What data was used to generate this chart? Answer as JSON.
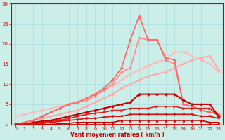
{
  "xlabel": "Vent moyen/en rafales ( km/h )",
  "xlim": [
    -0.5,
    23.5
  ],
  "ylim": [
    0,
    30
  ],
  "yticks": [
    0,
    5,
    10,
    15,
    20,
    25,
    30
  ],
  "xticks": [
    0,
    1,
    2,
    3,
    4,
    5,
    6,
    7,
    8,
    9,
    10,
    11,
    12,
    13,
    14,
    15,
    16,
    17,
    18,
    19,
    20,
    21,
    22,
    23
  ],
  "bg_color": "#cceee8",
  "grid_color": "#aadddd",
  "lines": [
    {
      "x": [
        0,
        1,
        2,
        3,
        4,
        5,
        6,
        7,
        8,
        9,
        10,
        11,
        12,
        13,
        14,
        15,
        16,
        17,
        18,
        19,
        20,
        21,
        22,
        23
      ],
      "y": [
        0,
        0,
        0,
        0,
        0,
        0,
        0,
        0,
        0,
        0,
        0,
        0,
        0,
        0,
        0,
        0,
        0,
        0,
        0,
        0,
        0,
        0,
        0,
        0
      ],
      "color": "#cc0000",
      "lw": 1.2,
      "marker": "s",
      "ms": 2.0,
      "zorder": 5
    },
    {
      "x": [
        0,
        1,
        2,
        3,
        4,
        5,
        6,
        7,
        8,
        9,
        10,
        11,
        12,
        13,
        14,
        15,
        16,
        17,
        18,
        19,
        20,
        21,
        22,
        23
      ],
      "y": [
        0,
        0,
        0,
        0,
        0,
        0.2,
        0.3,
        0.5,
        0.5,
        0.5,
        0.5,
        0.5,
        1.0,
        1.0,
        1.0,
        1.0,
        1.0,
        1.0,
        1.0,
        1.0,
        1.0,
        1.0,
        0.5,
        0.5
      ],
      "color": "#cc0000",
      "lw": 1.2,
      "marker": "^",
      "ms": 2.5,
      "zorder": 5
    },
    {
      "x": [
        0,
        1,
        2,
        3,
        4,
        5,
        6,
        7,
        8,
        9,
        10,
        11,
        12,
        13,
        14,
        15,
        16,
        17,
        18,
        19,
        20,
        21,
        22,
        23
      ],
      "y": [
        0,
        0,
        0.2,
        0.3,
        0.5,
        0.8,
        1.0,
        1.2,
        1.5,
        1.5,
        1.8,
        2.0,
        2.0,
        2.5,
        2.5,
        2.5,
        2.5,
        2.5,
        2.5,
        2.5,
        2.5,
        2.0,
        2.0,
        1.5
      ],
      "color": "#dd1111",
      "lw": 1.2,
      "marker": "v",
      "ms": 2.5,
      "zorder": 5
    },
    {
      "x": [
        0,
        1,
        2,
        3,
        4,
        5,
        6,
        7,
        8,
        9,
        10,
        11,
        12,
        13,
        14,
        15,
        16,
        17,
        18,
        19,
        20,
        21,
        22,
        23
      ],
      "y": [
        0,
        0,
        0.3,
        0.5,
        0.8,
        1.0,
        1.5,
        2.0,
        2.5,
        2.8,
        3.0,
        3.5,
        3.5,
        4.0,
        4.0,
        4.0,
        4.5,
        4.5,
        4.5,
        4.0,
        4.0,
        4.0,
        4.0,
        2.0
      ],
      "color": "#dd2222",
      "lw": 1.2,
      "marker": ">",
      "ms": 2.5,
      "zorder": 4
    },
    {
      "x": [
        0,
        1,
        2,
        3,
        4,
        5,
        6,
        7,
        8,
        9,
        10,
        11,
        12,
        13,
        14,
        15,
        16,
        17,
        18,
        19,
        20,
        21,
        22,
        23
      ],
      "y": [
        0,
        0,
        0.5,
        0.8,
        1.0,
        1.5,
        2.0,
        2.5,
        3.0,
        3.5,
        4.0,
        4.5,
        5.0,
        5.5,
        7.5,
        7.5,
        7.5,
        7.5,
        7.5,
        6.0,
        5.0,
        5.0,
        5.0,
        2.0
      ],
      "color": "#cc0000",
      "lw": 1.5,
      "marker": "D",
      "ms": 2.0,
      "zorder": 4
    },
    {
      "x": [
        0,
        1,
        2,
        3,
        4,
        5,
        6,
        7,
        8,
        9,
        10,
        11,
        12,
        13,
        14,
        15,
        16,
        17,
        18,
        19,
        20,
        21,
        22,
        23
      ],
      "y": [
        0,
        0.5,
        1.0,
        1.5,
        2.0,
        2.5,
        3.0,
        3.5,
        4.5,
        5.5,
        6.5,
        7.5,
        9.0,
        10.0,
        11.0,
        12.0,
        12.5,
        13.0,
        14.0,
        15.0,
        16.0,
        16.5,
        17.0,
        13.5
      ],
      "color": "#ffaaaa",
      "lw": 1.5,
      "marker": "D",
      "ms": 2.0,
      "zorder": 3
    },
    {
      "x": [
        0,
        1,
        2,
        3,
        4,
        5,
        6,
        7,
        8,
        9,
        10,
        11,
        12,
        13,
        14,
        15,
        16,
        17,
        18,
        19,
        20,
        21,
        22,
        23
      ],
      "y": [
        2.0,
        2.5,
        3.0,
        3.5,
        4.0,
        4.5,
        5.0,
        5.5,
        6.5,
        7.5,
        8.5,
        9.5,
        11.0,
        12.5,
        13.5,
        14.5,
        15.5,
        16.0,
        18.0,
        18.0,
        17.0,
        16.0,
        15.0,
        13.0
      ],
      "color": "#ffbbbb",
      "lw": 1.5,
      "marker": "D",
      "ms": 2.0,
      "zorder": 3
    },
    {
      "x": [
        0,
        1,
        2,
        3,
        4,
        5,
        6,
        7,
        8,
        9,
        10,
        11,
        12,
        13,
        14,
        15,
        16,
        17,
        18,
        19,
        20,
        21,
        22,
        23
      ],
      "y": [
        0,
        0.5,
        1.0,
        2.0,
        3.0,
        4.0,
        5.0,
        5.5,
        6.0,
        7.0,
        8.5,
        10.0,
        13.0,
        14.0,
        21.5,
        21.0,
        21.0,
        16.0,
        15.0,
        5.0,
        4.5,
        3.5,
        3.0,
        2.5
      ],
      "color": "#ff8888",
      "lw": 1.2,
      "marker": "D",
      "ms": 2.0,
      "zorder": 3
    },
    {
      "x": [
        0,
        1,
        2,
        3,
        4,
        5,
        6,
        7,
        8,
        9,
        10,
        11,
        12,
        13,
        14,
        15,
        16,
        17,
        18,
        19,
        20,
        21,
        22,
        23
      ],
      "y": [
        0,
        0.5,
        1.0,
        2.0,
        3.0,
        4.0,
        5.0,
        5.5,
        6.5,
        7.5,
        9.0,
        11.0,
        14.0,
        21.0,
        27.0,
        21.0,
        21.0,
        16.5,
        16.0,
        5.0,
        4.5,
        3.5,
        3.0,
        2.5
      ],
      "color": "#ff6666",
      "lw": 1.2,
      "marker": "D",
      "ms": 2.0,
      "zorder": 3
    }
  ]
}
